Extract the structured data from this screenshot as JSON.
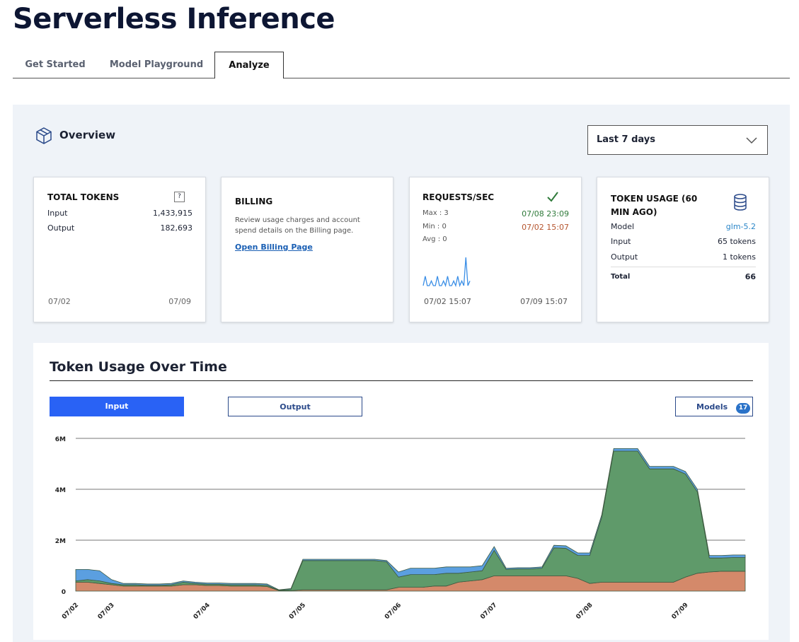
{
  "header": {
    "title": "Serverless Inference"
  },
  "tabs": [
    "Get Started",
    "Model Playground",
    "Analyze"
  ],
  "overview": {
    "title": "Overview",
    "range": "Last 7 days"
  },
  "total_tokens": {
    "title": "TOTAL TOKENS",
    "help": "?",
    "input_label": "Input",
    "input": "1,433,915",
    "output_label": "Output",
    "output": "182,693",
    "start": "07/02",
    "end": "07/09"
  },
  "billing": {
    "title": "BILLING",
    "text": "Review usage charges and account spend details on the Billing page.",
    "link": "Open Billing Page"
  },
  "requests": {
    "title": "REQUESTS/SEC",
    "max": "Max : 3",
    "max_time": "07/08 23:09",
    "min": "Min : 0",
    "min_time": "07/02 15:07",
    "avg": "Avg : 0",
    "start": "07/02 15:07",
    "end": "07/09 15:07",
    "chart": {
      "type": "line",
      "color": "#3a8ee6",
      "ylim": [
        0,
        3
      ],
      "values": [
        0,
        1,
        0,
        0,
        0.5,
        0,
        0,
        1,
        0,
        0,
        0.5,
        0,
        1,
        0,
        0,
        0.5,
        0,
        1,
        0,
        0.5,
        0,
        3,
        0,
        0.5
      ]
    }
  },
  "token_usage": {
    "title": "TOKEN USAGE (60 MIN AGO)",
    "model_label": "Model",
    "model": "glm-5.2",
    "input_label": "Input",
    "input": "65 tokens",
    "output_label": "Output",
    "output": "1 tokens",
    "total_label": "Total",
    "total": 66
  },
  "chart_controls": {
    "input": "Input",
    "output": "Output",
    "models": "Models",
    "models_count": 17
  },
  "chart_data": {
    "type": "area",
    "stacked": true,
    "title": "Token Usage Over Time",
    "grid": true,
    "ylim": [
      0,
      6000000
    ],
    "yticks": [
      0,
      {
        "value": 2000000,
        "label": "2M"
      },
      {
        "value": 4000000,
        "label": "4M"
      },
      {
        "value": 6000000,
        "label": "6M"
      }
    ],
    "categories": [
      "07/02",
      null,
      null,
      "07/03",
      null,
      null,
      null,
      null,
      null,
      null,
      null,
      "07/04",
      null,
      null,
      null,
      null,
      null,
      null,
      null,
      "07/05",
      null,
      null,
      null,
      null,
      null,
      null,
      null,
      "07/06",
      null,
      null,
      null,
      null,
      null,
      null,
      null,
      "07/07",
      null,
      null,
      null,
      null,
      null,
      null,
      null,
      "07/08",
      null,
      null,
      null,
      null,
      null,
      null,
      null,
      "07/09",
      null,
      null,
      null,
      null,
      null
    ],
    "series": [
      {
        "color": "#d4896a",
        "values": [
          350000,
          350000,
          300000,
          250000,
          200000,
          200000,
          200000,
          200000,
          200000,
          250000,
          250000,
          220000,
          220000,
          200000,
          200000,
          200000,
          180000,
          20000,
          20000,
          50000,
          50000,
          50000,
          50000,
          50000,
          50000,
          50000,
          50000,
          150000,
          150000,
          150000,
          200000,
          200000,
          350000,
          400000,
          450000,
          600000,
          600000,
          600000,
          600000,
          600000,
          600000,
          600000,
          500000,
          300000,
          350000,
          350000,
          350000,
          350000,
          350000,
          350000,
          350000,
          550000,
          700000,
          750000,
          780000,
          780000,
          780000
        ]
      },
      {
        "color": "#5f9a6a",
        "values": [
          50000,
          100000,
          100000,
          50000,
          50000,
          50000,
          30000,
          30000,
          50000,
          100000,
          50000,
          50000,
          50000,
          50000,
          50000,
          50000,
          50000,
          10000,
          50000,
          1150000,
          1150000,
          1150000,
          1150000,
          1150000,
          1150000,
          1150000,
          1100000,
          400000,
          500000,
          500000,
          450000,
          500000,
          350000,
          350000,
          350000,
          1000000,
          250000,
          270000,
          270000,
          300000,
          1100000,
          1080000,
          900000,
          1100000,
          2550000,
          5150000,
          5150000,
          5150000,
          4450000,
          4450000,
          4450000,
          4050000,
          3200000,
          550000,
          520000,
          540000,
          540000
        ]
      },
      {
        "color": "#5b9fe0",
        "values": [
          450000,
          400000,
          400000,
          150000,
          50000,
          50000,
          50000,
          50000,
          50000,
          50000,
          50000,
          50000,
          50000,
          50000,
          50000,
          50000,
          50000,
          20000,
          30000,
          50000,
          50000,
          50000,
          50000,
          50000,
          50000,
          50000,
          50000,
          200000,
          250000,
          250000,
          250000,
          250000,
          250000,
          200000,
          200000,
          150000,
          50000,
          50000,
          50000,
          50000,
          100000,
          100000,
          100000,
          100000,
          100000,
          100000,
          100000,
          100000,
          100000,
          100000,
          100000,
          100000,
          100000,
          100000,
          100000,
          100000,
          100000
        ]
      }
    ]
  }
}
